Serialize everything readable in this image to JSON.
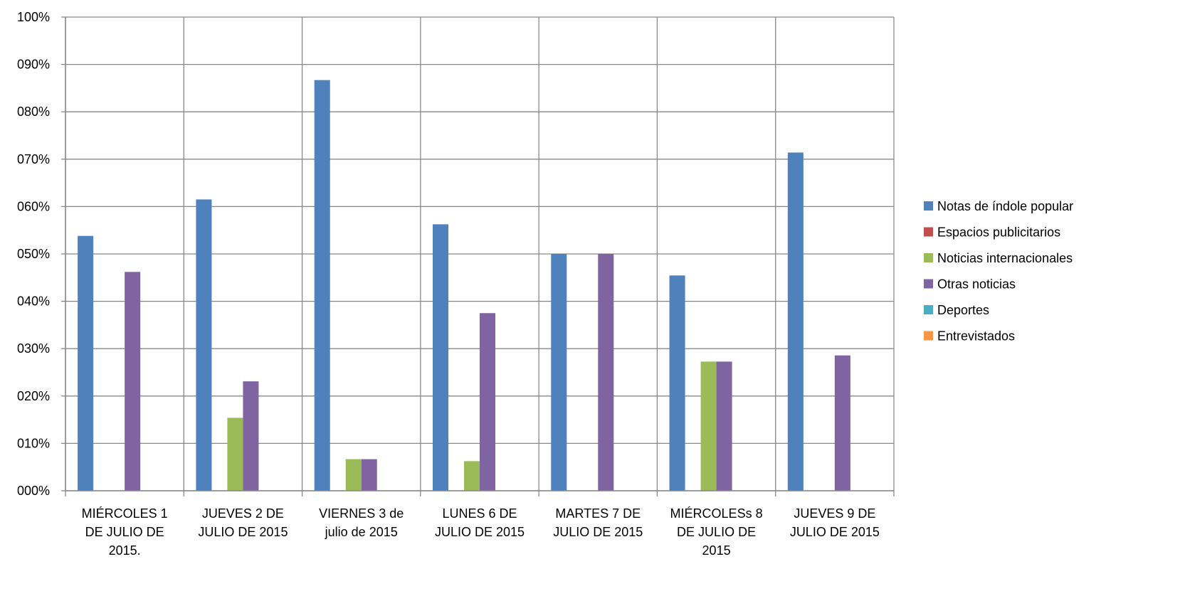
{
  "chart_data": {
    "type": "bar",
    "title": "",
    "xlabel": "",
    "ylabel": "",
    "ylim": [
      0,
      1
    ],
    "grid": true,
    "legend_position": "right",
    "y_ticks": [
      "000%",
      "010%",
      "020%",
      "030%",
      "040%",
      "050%",
      "060%",
      "070%",
      "080%",
      "090%",
      "100%"
    ],
    "categories": [
      [
        "MIÉRCOLES 1",
        "DE JULIO DE",
        "2015."
      ],
      [
        "JUEVES 2 DE",
        "JULIO DE 2015"
      ],
      [
        "VIERNES 3 de",
        "julio de 2015"
      ],
      [
        "LUNES 6 DE",
        "JULIO DE 2015"
      ],
      [
        "MARTES 7 DE",
        "JULIO DE 2015"
      ],
      [
        "MIÉRCOLESs 8",
        "DE JULIO DE",
        "2015"
      ],
      [
        "JUEVES 9 DE",
        "JULIO DE 2015"
      ]
    ],
    "series": [
      {
        "name": "Notas de índole popular",
        "color": "#4F81BD",
        "values": [
          0.538,
          0.615,
          0.867,
          0.5625,
          0.5,
          0.4545,
          0.714
        ]
      },
      {
        "name": "Espacios publicitarios",
        "color": "#C0504D",
        "values": [
          0,
          0,
          0,
          0,
          0,
          0,
          0
        ]
      },
      {
        "name": "Noticias internacionales",
        "color": "#9BBB59",
        "values": [
          0,
          0.154,
          0.0667,
          0.0625,
          0,
          0.2727,
          0
        ]
      },
      {
        "name": "Otras noticias",
        "color": "#8064A2",
        "values": [
          0.462,
          0.231,
          0.0667,
          0.375,
          0.5,
          0.2727,
          0.2857
        ]
      },
      {
        "name": "Deportes",
        "color": "#4BACC6",
        "values": [
          0,
          0,
          0,
          0,
          0,
          0,
          0
        ]
      },
      {
        "name": "Entrevistados",
        "color": "#F79646",
        "values": [
          0,
          0,
          0,
          0,
          0,
          0,
          0
        ]
      }
    ]
  }
}
